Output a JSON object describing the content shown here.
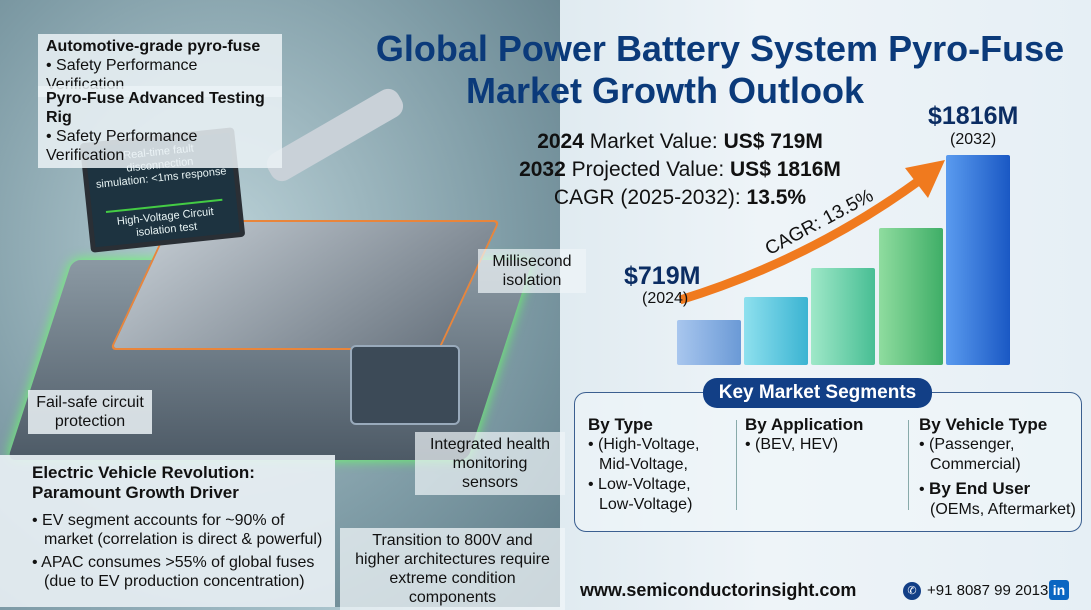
{
  "title": {
    "line1": "Global Power Battery System Pyro-Fuse",
    "line2": "Market Growth Outlook"
  },
  "top_labels": [
    {
      "title": "Automotive-grade pyro-fuse",
      "bullet": "Safety Performance Verification"
    },
    {
      "title": "Pyro-Fuse Advanced Testing Rig",
      "bullet": "Safety Performance Verification"
    }
  ],
  "monitor": {
    "line1": "Real-time fault disconnection",
    "line2": "simulation: <1ms response",
    "line3": "High-Voltage Circuit",
    "line4": "isolation test"
  },
  "callouts": {
    "millisecond": "Millisecond isolation",
    "failsafe": "Fail-safe circuit protection",
    "health": "Integrated health monitoring sensors",
    "transition": "Transition to 800V and higher architectures require extreme condition components"
  },
  "ev": {
    "title1": "Electric Vehicle Revolution:",
    "title2": "Paramount Growth Driver",
    "bullets": [
      "EV segment accounts for ~90% of market (correlation is direct & powerful)",
      "APAC consumes >55% of global fuses (due to EV production concentration)"
    ]
  },
  "stats": {
    "y2024": "2024",
    "mv_label": "Market Value:",
    "mv": "US$ 719M",
    "y2032": "2032",
    "pv_label": "Projected Value:",
    "pv": "US$ 1816M",
    "cagr_label": "CAGR (2025-2032):",
    "cagr": "13.5%"
  },
  "chart": {
    "start_value": "$719M",
    "start_year": "(2024)",
    "end_value": "$1816M",
    "end_year": "(2032)",
    "arrow_label": "CAGR: 13.5%"
  },
  "segments": {
    "title": "Key Market Segments",
    "type": {
      "heading": "By Type",
      "items": [
        "(High-Voltage, Mid-Voltage,",
        "Low-Voltage, Low-Voltage)"
      ]
    },
    "application": {
      "heading": "By Application",
      "items": [
        "(BEV, HEV)"
      ]
    },
    "vehicle": {
      "heading": "By Vehicle Type",
      "items": [
        "(Passenger, Commercial)"
      ],
      "end_user_heading": "By End User",
      "end_user": "(OEMs, Aftermarket)"
    }
  },
  "footer": {
    "website": "www.semiconductorinsight.com",
    "phone": "+91 8087 99 2013",
    "phone_icon": "phone-icon",
    "social_icon": "linkedin-icon"
  },
  "colors": {
    "title": "#0b3a7a",
    "arrow": "#f07a1e",
    "badge": "#123f86"
  }
}
